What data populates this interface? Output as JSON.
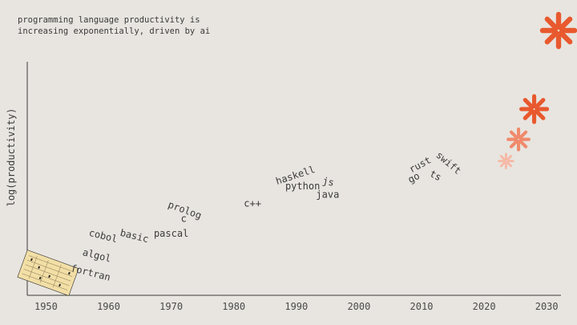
{
  "title_lines": [
    "programming language productivity is",
    "increasing exponentially, driven by ai"
  ],
  "chart_data": {
    "type": "scatter",
    "title": "programming language productivity is increasing exponentially, driven by ai",
    "xlabel": "",
    "ylabel": "log(productivity)",
    "xlim": [
      1947,
      2031
    ],
    "ylim": [
      0,
      10
    ],
    "x_ticks": [
      "1950",
      "1960",
      "1970",
      "1980",
      "1990",
      "2000",
      "2010",
      "2020",
      "2030"
    ],
    "grid": false,
    "points": [
      {
        "label": "fortran",
        "x": 1957,
        "y": 0.6,
        "rotate": 14
      },
      {
        "label": "algol",
        "x": 1958,
        "y": 1.4,
        "rotate": 14
      },
      {
        "label": "cobol",
        "x": 1959,
        "y": 2.3,
        "rotate": 14
      },
      {
        "label": "basic",
        "x": 1964,
        "y": 2.3,
        "rotate": 14
      },
      {
        "label": "pascal",
        "x": 1970,
        "y": 2.4,
        "rotate": 0
      },
      {
        "label": "c",
        "x": 1972,
        "y": 3.1,
        "rotate": 0
      },
      {
        "label": "prolog",
        "x": 1972,
        "y": 3.5,
        "rotate": 20
      },
      {
        "label": "c++",
        "x": 1983,
        "y": 3.8,
        "rotate": 0
      },
      {
        "label": "python",
        "x": 1991,
        "y": 4.6,
        "rotate": 0
      },
      {
        "label": "haskell",
        "x": 1990,
        "y": 5.1,
        "rotate": -18
      },
      {
        "label": "js",
        "x": 1995,
        "y": 4.8,
        "rotate": 12
      },
      {
        "label": "java",
        "x": 1995,
        "y": 4.2,
        "rotate": 0
      },
      {
        "label": "go",
        "x": 2009,
        "y": 5.0,
        "rotate": -28
      },
      {
        "label": "rust",
        "x": 2010,
        "y": 5.6,
        "rotate": -28
      },
      {
        "label": "swift",
        "x": 2014,
        "y": 5.7,
        "rotate": 40
      },
      {
        "label": "ts",
        "x": 2012,
        "y": 5.1,
        "rotate": 28
      }
    ],
    "ai_marks": [
      {
        "x": 2023.5,
        "y": 5.9,
        "size": 0.55,
        "color": "#f6b8a6"
      },
      {
        "x": 2025.5,
        "y": 6.9,
        "size": 0.8,
        "color": "#f08a6c"
      },
      {
        "x": 2028.0,
        "y": 8.3,
        "size": 1.0,
        "color": "#e8592e"
      }
    ]
  },
  "logo": {
    "name": "asterisk-logo-icon",
    "color": "#e8592e"
  },
  "punch_card": {
    "name": "punch-card-icon",
    "color": "#f2dfa6"
  }
}
